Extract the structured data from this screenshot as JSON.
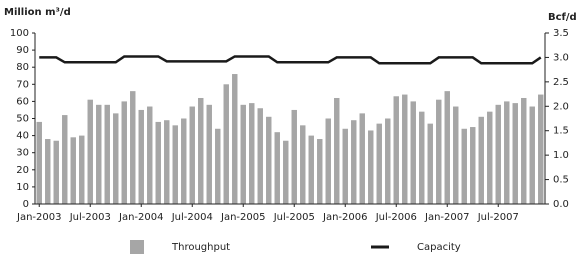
{
  "chart_data": {
    "type": "bar",
    "y_label": "Million m³/d",
    "y2_label": "Bcf/d",
    "categories": [
      "Jan-2003",
      null,
      null,
      null,
      null,
      null,
      "Jul-2003",
      null,
      null,
      null,
      null,
      null,
      "Jan-2004",
      null,
      null,
      null,
      null,
      null,
      "Jul-2004",
      null,
      null,
      null,
      null,
      null,
      "Jan-2005",
      null,
      null,
      null,
      null,
      null,
      "Jul-2005",
      null,
      null,
      null,
      null,
      null,
      "Jan-2006",
      null,
      null,
      null,
      null,
      null,
      "Jul-2006",
      null,
      null,
      null,
      null,
      null,
      "Jan-2007",
      null,
      null,
      null,
      null,
      null,
      "Jul-2007",
      null,
      null,
      null,
      null,
      null
    ],
    "series": [
      {
        "name": "Throughput",
        "type": "bar",
        "color": "#a6a6a6",
        "values": [
          48,
          38,
          37,
          52,
          39,
          40,
          61,
          58,
          58,
          53,
          60,
          66,
          55,
          57,
          48,
          49,
          46,
          50,
          57,
          62,
          58,
          44,
          70,
          76,
          58,
          59,
          56,
          51,
          42,
          37,
          55,
          46,
          40,
          38,
          50,
          62,
          44,
          49,
          53,
          43,
          47,
          50,
          63,
          64,
          60,
          54,
          47,
          61,
          66,
          57,
          44,
          45,
          51,
          54,
          58,
          60,
          59,
          62,
          57,
          64
        ]
      },
      {
        "name": "Capacity",
        "type": "line",
        "axis": "y2",
        "color": "#1a1a1a",
        "values": [
          3.0,
          3.0,
          3.0,
          2.9,
          2.9,
          2.9,
          2.9,
          2.9,
          2.9,
          2.9,
          3.02,
          3.02,
          3.02,
          3.02,
          3.02,
          2.92,
          2.92,
          2.92,
          2.92,
          2.92,
          2.92,
          2.92,
          2.92,
          3.02,
          3.02,
          3.02,
          3.02,
          3.02,
          2.9,
          2.9,
          2.9,
          2.9,
          2.9,
          2.9,
          2.9,
          3.0,
          3.0,
          3.0,
          3.0,
          3.0,
          2.88,
          2.88,
          2.88,
          2.88,
          2.88,
          2.88,
          2.88,
          3.0,
          3.0,
          3.0,
          3.0,
          3.0,
          2.88,
          2.88,
          2.88,
          2.88,
          2.88,
          2.88,
          2.88,
          3.0
        ]
      }
    ],
    "ylim": [
      0,
      100
    ],
    "yticks": [
      0,
      10,
      20,
      30,
      40,
      50,
      60,
      70,
      80,
      90,
      100
    ],
    "y2lim": [
      0,
      3.5
    ],
    "y2ticks": [
      {
        "value": 0,
        "label": "0.0"
      },
      0.5,
      {
        "value": 1,
        "label": "1.0"
      },
      1.5,
      {
        "value": 2,
        "label": "2.0"
      },
      2.5,
      {
        "value": 3,
        "label": "3.0"
      },
      3.5
    ],
    "grid": false,
    "legend": "bottom"
  }
}
